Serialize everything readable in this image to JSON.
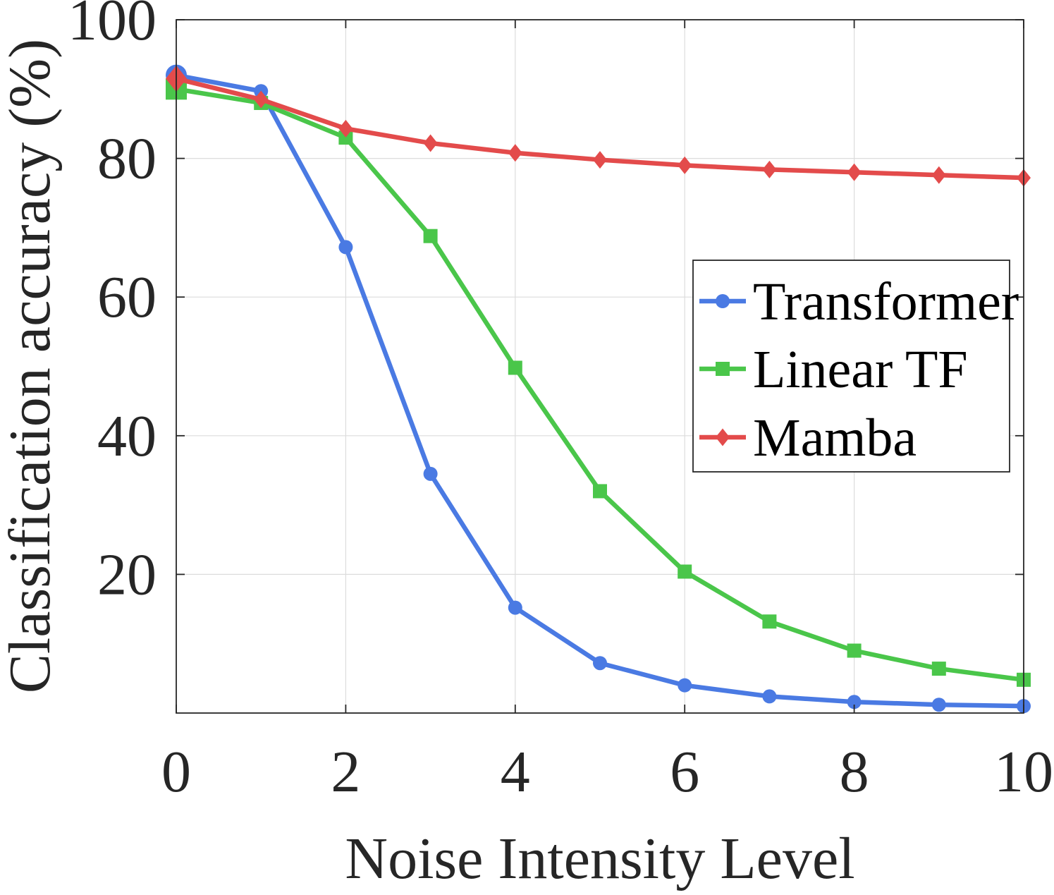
{
  "chart_data": {
    "type": "line",
    "title": "",
    "xlabel": "Noise Intensity Level",
    "ylabel": "Classification accuracy (%)",
    "xlim": [
      0,
      10
    ],
    "ylim": [
      0,
      100
    ],
    "x_ticks": [
      "0",
      "2",
      "4",
      "6",
      "8",
      "10"
    ],
    "y_ticks": [
      "20",
      "40",
      "60",
      "80",
      "100"
    ],
    "grid": true,
    "legend_position": "center-right",
    "x": [
      0,
      1,
      2,
      3,
      4,
      5,
      6,
      7,
      8,
      9,
      10
    ],
    "series": [
      {
        "name": "Transformer",
        "color": "#4a7ae3",
        "marker": "circle",
        "values": [
          92.0,
          89.7,
          67.2,
          34.5,
          15.2,
          7.2,
          4.0,
          2.4,
          1.6,
          1.2,
          1.0
        ]
      },
      {
        "name": "Linear TF",
        "color": "#4ac64a",
        "marker": "square",
        "values": [
          90.0,
          88.0,
          83.0,
          68.8,
          49.8,
          32.0,
          20.4,
          13.2,
          9.0,
          6.4,
          4.8
        ]
      },
      {
        "name": "Mamba",
        "color": "#e34b4b",
        "marker": "diamond",
        "values": [
          91.5,
          88.5,
          84.3,
          82.2,
          80.8,
          79.8,
          79.0,
          78.4,
          78.0,
          77.6,
          77.2
        ]
      }
    ]
  }
}
